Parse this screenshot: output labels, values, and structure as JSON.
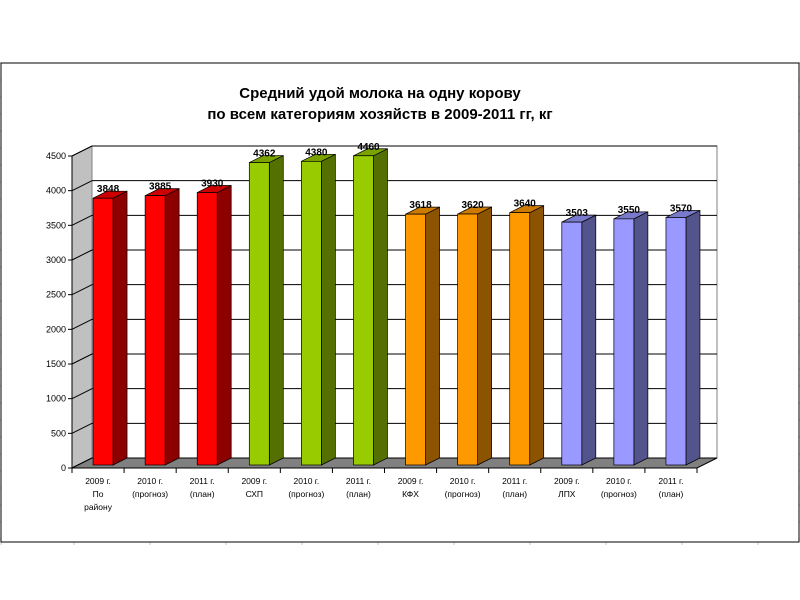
{
  "chart_data": {
    "type": "bar",
    "title_lines": [
      "Средний удой молока на одну корову",
      "по всем категориям хозяйств в 2009-2011 гг,  кг"
    ],
    "categories": [
      [
        "2009 г.",
        "По",
        "району"
      ],
      [
        "2010 г.",
        "(прогноз)"
      ],
      [
        "2011 г.",
        "(план)"
      ],
      [
        "2009 г.",
        "СХП"
      ],
      [
        "2010 г.",
        "(прогноз)"
      ],
      [
        "2011 г.",
        "(план)"
      ],
      [
        "2009 г.",
        "КФХ"
      ],
      [
        "2010 г.",
        "(прогноз)"
      ],
      [
        "2011 г.",
        "(план)"
      ],
      [
        "2009 г.",
        "ЛПХ"
      ],
      [
        "2010 г.",
        "(прогноз)"
      ],
      [
        "2011 г.",
        "(план)"
      ]
    ],
    "values": [
      3848,
      3885,
      3930,
      4362,
      4380,
      4460,
      3618,
      3620,
      3640,
      3503,
      3550,
      3570
    ],
    "bar_colors": [
      "#ff0000",
      "#ff0000",
      "#ff0000",
      "#99cc00",
      "#99cc00",
      "#99cc00",
      "#ff9900",
      "#ff9900",
      "#ff9900",
      "#9999ff",
      "#9999ff",
      "#9999ff"
    ],
    "y_ticks": [
      "0",
      "500",
      "1000",
      "1500",
      "2000",
      "2500",
      "3000",
      "3500",
      "4000",
      "4500"
    ],
    "ylim": [
      0,
      4500
    ],
    "grid": true,
    "legend": "none",
    "xlabel": "",
    "ylabel": ""
  }
}
